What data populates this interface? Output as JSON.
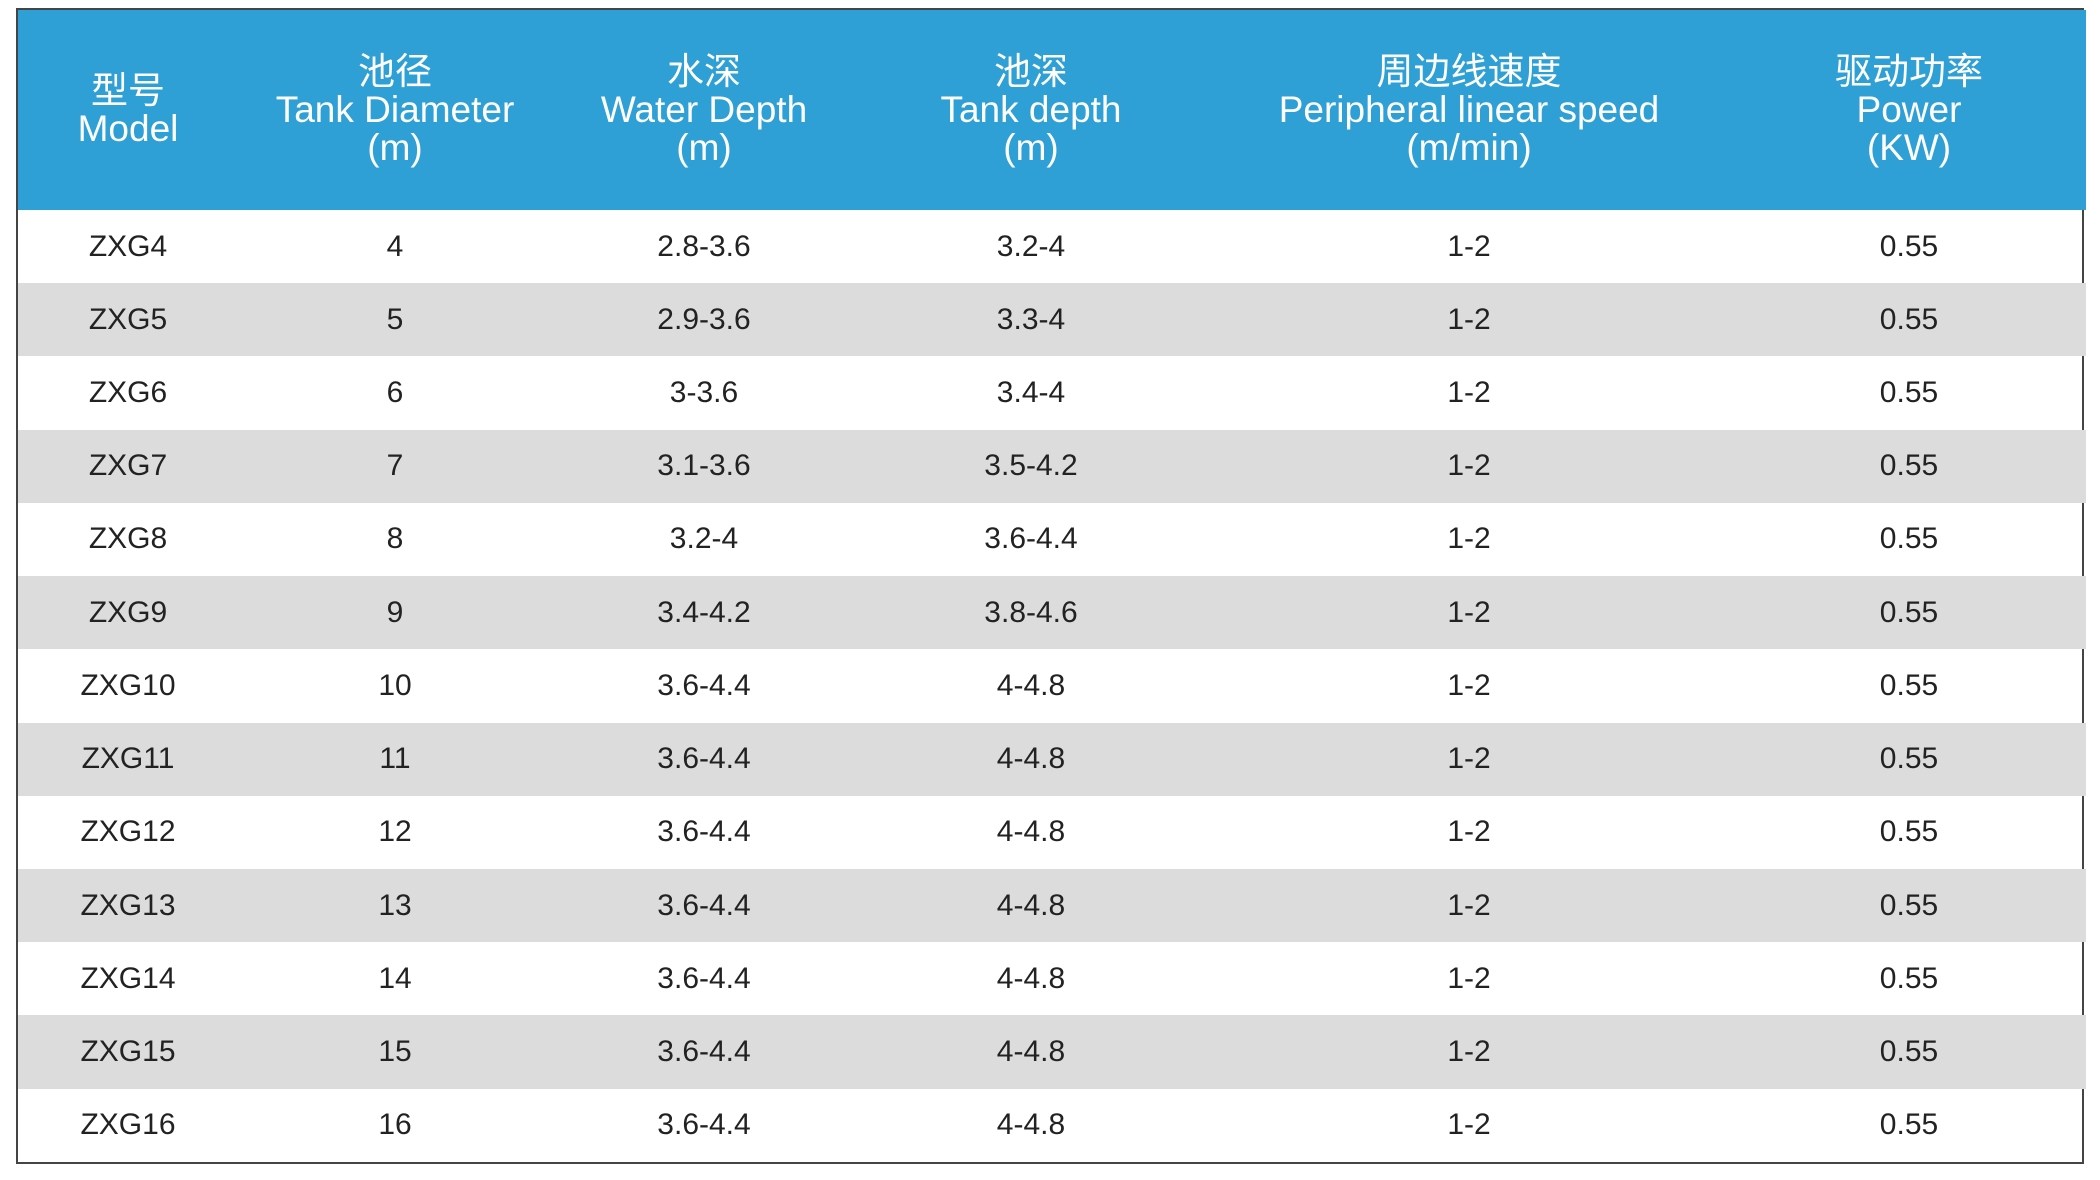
{
  "table": {
    "header": [
      [
        "型号",
        "Model"
      ],
      [
        "池径",
        "Tank Diameter",
        "(m)"
      ],
      [
        "水深",
        "Water Depth",
        "(m)"
      ],
      [
        "池深",
        "Tank depth",
        "(m)"
      ],
      [
        "周边线速度",
        "Peripheral linear speed",
        "(m/min)"
      ],
      [
        "驱动功率",
        "Power",
        "(KW)"
      ]
    ],
    "rows": [
      [
        "ZXG4",
        "4",
        "2.8-3.6",
        "3.2-4",
        "1-2",
        "0.55"
      ],
      [
        "ZXG5",
        "5",
        "2.9-3.6",
        "3.3-4",
        "1-2",
        "0.55"
      ],
      [
        "ZXG6",
        "6",
        "3-3.6",
        "3.4-4",
        "1-2",
        "0.55"
      ],
      [
        "ZXG7",
        "7",
        "3.1-3.6",
        "3.5-4.2",
        "1-2",
        "0.55"
      ],
      [
        "ZXG8",
        "8",
        "3.2-4",
        "3.6-4.4",
        "1-2",
        "0.55"
      ],
      [
        "ZXG9",
        "9",
        "3.4-4.2",
        "3.8-4.6",
        "1-2",
        "0.55"
      ],
      [
        "ZXG10",
        "10",
        "3.6-4.4",
        "4-4.8",
        "1-2",
        "0.55"
      ],
      [
        "ZXG11",
        "11",
        "3.6-4.4",
        "4-4.8",
        "1-2",
        "0.55"
      ],
      [
        "ZXG12",
        "12",
        "3.6-4.4",
        "4-4.8",
        "1-2",
        "0.55"
      ],
      [
        "ZXG13",
        "13",
        "3.6-4.4",
        "4-4.8",
        "1-2",
        "0.55"
      ],
      [
        "ZXG14",
        "14",
        "3.6-4.4",
        "4-4.8",
        "1-2",
        "0.55"
      ],
      [
        "ZXG15",
        "15",
        "3.6-4.4",
        "4-4.8",
        "1-2",
        "0.55"
      ],
      [
        "ZXG16",
        "16",
        "3.6-4.4",
        "4-4.8",
        "1-2",
        "0.55"
      ]
    ]
  }
}
